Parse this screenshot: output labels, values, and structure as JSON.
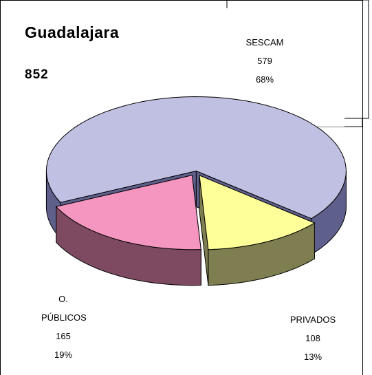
{
  "chart_data": {
    "type": "pie3d",
    "title": "Guadalajara",
    "total": 852,
    "categories": [
      "SESCAM",
      "PRIVADOS",
      "O. PÚBLICOS"
    ],
    "counts": [
      579,
      108,
      165
    ],
    "values": [
      68,
      13,
      19
    ],
    "value_labels": [
      "68%",
      "13%",
      "19%"
    ],
    "colors": [
      "#c0c0e2",
      "#ffff99",
      "#f596c0"
    ],
    "side_colors": [
      "#5f5f8c",
      "#7e7e50",
      "#7e4a62"
    ]
  }
}
